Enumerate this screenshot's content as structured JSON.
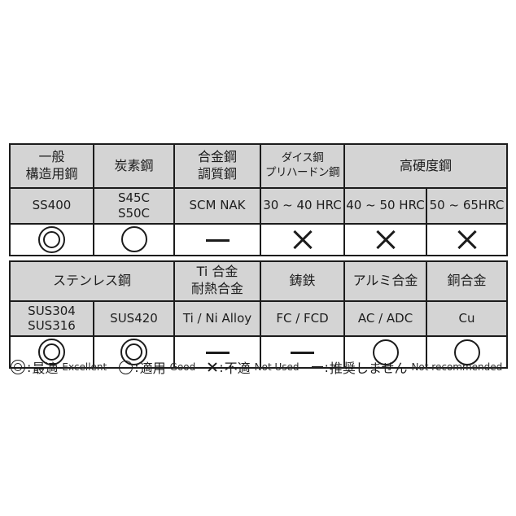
{
  "colors": {
    "background": "#ffffff",
    "cell_bg": "#d4d4d4",
    "rating_bg": "#ffffff",
    "border": "#1c1c1c",
    "text": "#1d1d1d"
  },
  "table": {
    "column_count": 6,
    "sections": [
      {
        "headers": [
          {
            "label": "一般\n構造用鋼",
            "colspan": 1
          },
          {
            "label": "炭素鋼",
            "colspan": 1
          },
          {
            "label": "合金鋼\n調質鋼",
            "colspan": 1
          },
          {
            "label": "ダイス鋼\nプリハードン鋼",
            "colspan": 1
          },
          {
            "label": "高硬度鋼",
            "colspan": 2
          }
        ],
        "grades": [
          "SS400",
          "S45C\nS50C",
          "SCM NAK",
          "30 ~ 40 HRC",
          "40 ~ 50 HRC",
          "50 ~ 65HRC"
        ],
        "ratings": [
          "double-circle",
          "circle",
          "dash",
          "cross",
          "cross",
          "cross"
        ]
      },
      {
        "headers": [
          {
            "label": "ステンレス鋼",
            "colspan": 2
          },
          {
            "label": "Ti 合金\n耐熱合金",
            "colspan": 1
          },
          {
            "label": "鋳鉄",
            "colspan": 1
          },
          {
            "label": "アルミ合金",
            "colspan": 1
          },
          {
            "label": "銅合金",
            "colspan": 1
          }
        ],
        "grades": [
          "SUS304\nSUS316",
          "SUS420",
          "Ti / Ni Alloy",
          "FC / FCD",
          "AC / ADC",
          "Cu"
        ],
        "ratings": [
          "double-circle",
          "double-circle",
          "dash",
          "dash",
          "circle",
          "circle"
        ]
      }
    ]
  },
  "legend": {
    "colon": ":",
    "items": [
      {
        "symbol": "double-circle",
        "jp": "最適",
        "en": "Excellent"
      },
      {
        "symbol": "circle",
        "jp": "適用",
        "en": "Good"
      },
      {
        "symbol": "cross",
        "jp": "不適",
        "en": "Not Used"
      },
      {
        "symbol": "dash",
        "jp": "推奨しません",
        "en": "Not recommended"
      }
    ]
  }
}
